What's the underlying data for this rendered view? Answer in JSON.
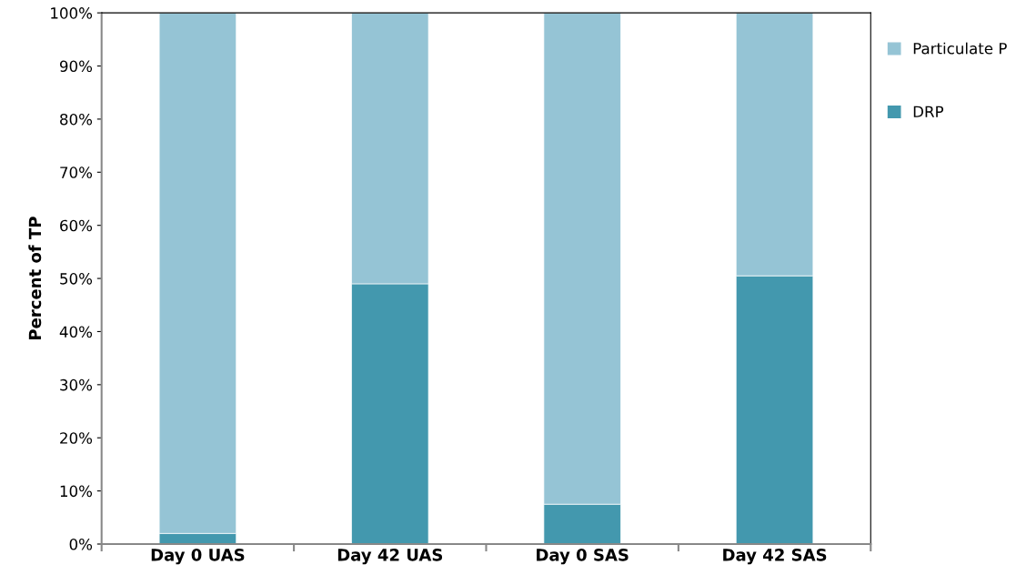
{
  "chart_data": {
    "type": "bar",
    "stacked": true,
    "ylabel": "Percent of TP",
    "categories": [
      "Day 0 UAS",
      "Day 42 UAS",
      "Day 0 SAS",
      "Day 42 SAS"
    ],
    "series": [
      {
        "name": "DRP",
        "color": "#4398ae",
        "values": [
          2,
          49,
          7.5,
          50.5
        ]
      },
      {
        "name": "Particulate P",
        "color": "#95c4d5",
        "values": [
          98,
          51,
          92.5,
          49.5
        ]
      }
    ],
    "ylim": [
      0,
      100
    ],
    "yticks": [
      {
        "value": 0,
        "label": "0%"
      },
      {
        "value": 10,
        "label": "10%"
      },
      {
        "value": 20,
        "label": "20%"
      },
      {
        "value": 30,
        "label": "30%"
      },
      {
        "value": 40,
        "label": "40%"
      },
      {
        "value": 50,
        "label": "50%"
      },
      {
        "value": 60,
        "label": "60%"
      },
      {
        "value": 70,
        "label": "70%"
      },
      {
        "value": 80,
        "label": "80%"
      },
      {
        "value": 90,
        "label": "90%"
      },
      {
        "value": 100,
        "label": "100%"
      }
    ],
    "grid": false,
    "legend": "right"
  }
}
